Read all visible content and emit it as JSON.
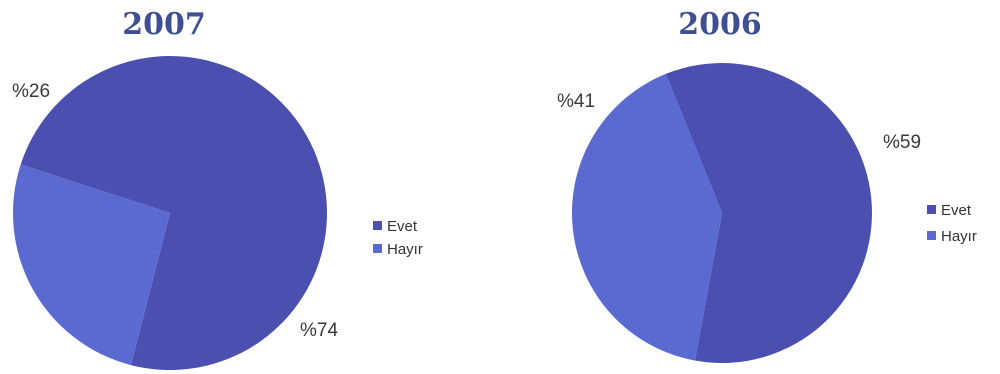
{
  "chart_data": [
    {
      "type": "pie",
      "title": "2007",
      "categories": [
        "Evet",
        "Hayır"
      ],
      "values": [
        74,
        26
      ],
      "value_labels": [
        "%74",
        "%26"
      ],
      "legend": [
        "Evet",
        "Hayır"
      ],
      "legend_position": "right",
      "colors": [
        "#4b4fb0",
        "#5a6ad0"
      ]
    },
    {
      "type": "pie",
      "title": "2006",
      "categories": [
        "Evet",
        "Hayır"
      ],
      "values": [
        59,
        41
      ],
      "value_labels": [
        "%59",
        "%41"
      ],
      "legend": [
        "Evet",
        "Hayır"
      ],
      "legend_position": "right",
      "colors": [
        "#4b4fb0",
        "#5a6ad0"
      ]
    }
  ],
  "title_color": "#3f4f93"
}
